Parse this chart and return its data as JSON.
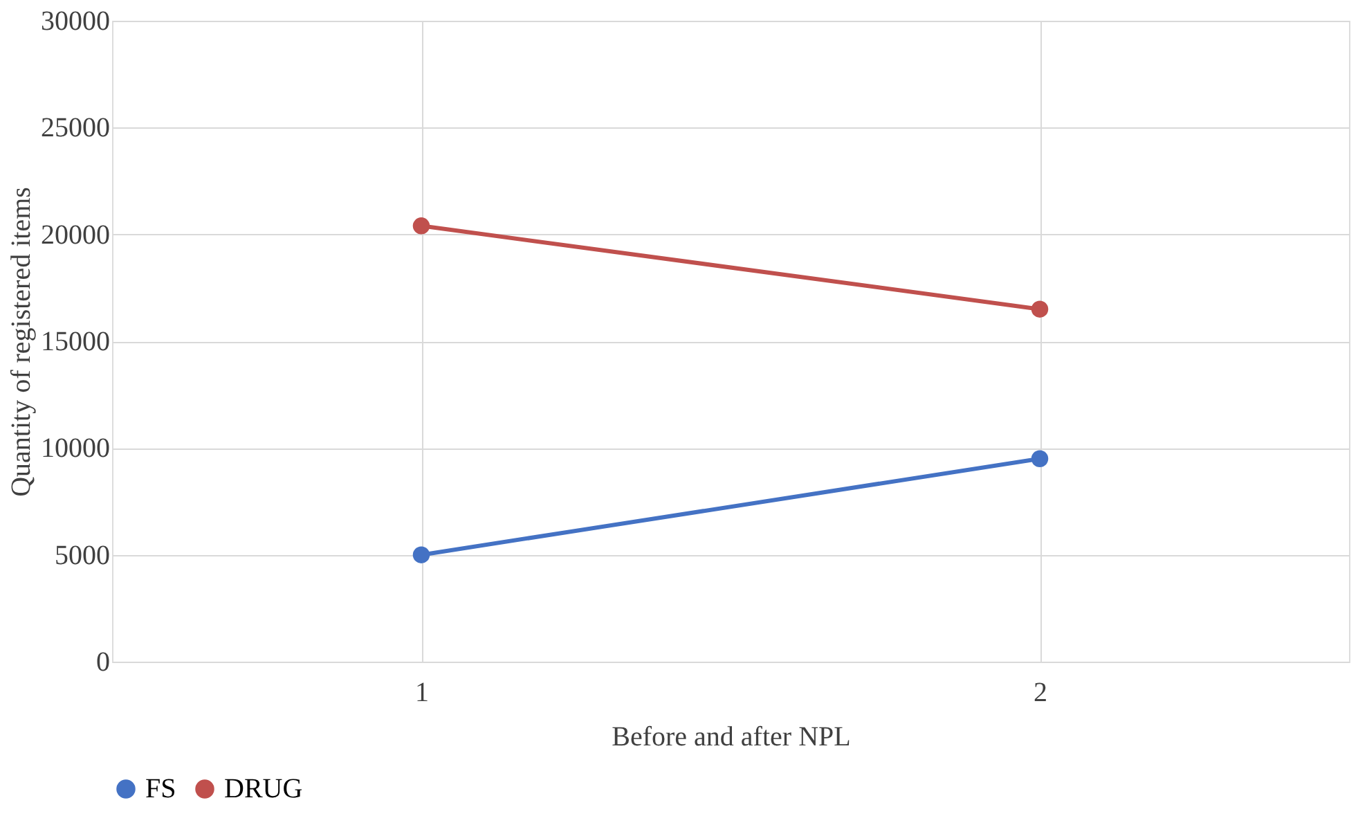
{
  "chart_data": {
    "type": "line",
    "xlabel": "Before and after NPL",
    "ylabel": "Quantity of registered items",
    "categories": [
      "1",
      "2"
    ],
    "series": [
      {
        "name": "FS",
        "color": "#4472c4",
        "values": [
          5000,
          9500
        ]
      },
      {
        "name": "DRUG",
        "color": "#c0504d",
        "values": [
          20400,
          16500
        ]
      }
    ],
    "ylim": [
      0,
      30000
    ],
    "yticks": [
      0,
      5000,
      10000,
      15000,
      20000,
      25000,
      30000
    ],
    "grid": true,
    "legend": "bottom",
    "marker": "circle",
    "line_style": "solid"
  }
}
